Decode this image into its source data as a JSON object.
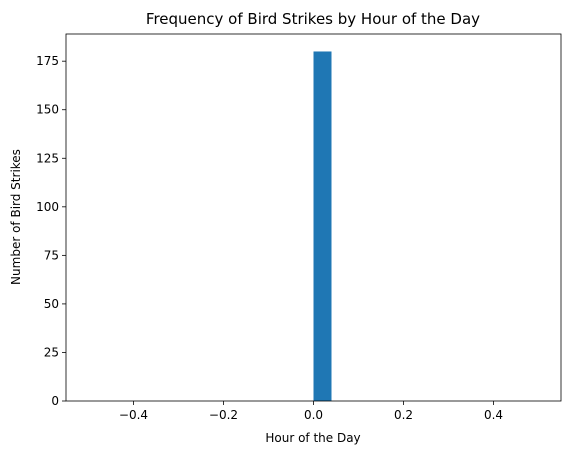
{
  "chart_data": {
    "type": "bar",
    "title": "Frequency of Bird Strikes by Hour of the Day",
    "xlabel": "Hour of the Day",
    "ylabel": "Number of Bird Strikes",
    "xlim": [
      -0.55,
      0.55
    ],
    "ylim": [
      0,
      189
    ],
    "xticks": [
      -0.4,
      -0.2,
      0.0,
      0.2,
      0.4
    ],
    "xtick_labels": [
      "−0.4",
      "−0.2",
      "0.0",
      "0.2",
      "0.4"
    ],
    "yticks": [
      0,
      25,
      50,
      75,
      100,
      125,
      150,
      175
    ],
    "ytick_labels": [
      "0",
      "25",
      "50",
      "75",
      "100",
      "125",
      "150",
      "175"
    ],
    "bars": [
      {
        "x0": 0.0,
        "x1": 0.04,
        "value": 180
      }
    ],
    "bar_color": "#1f77b4",
    "grid": false,
    "legend": "none"
  }
}
